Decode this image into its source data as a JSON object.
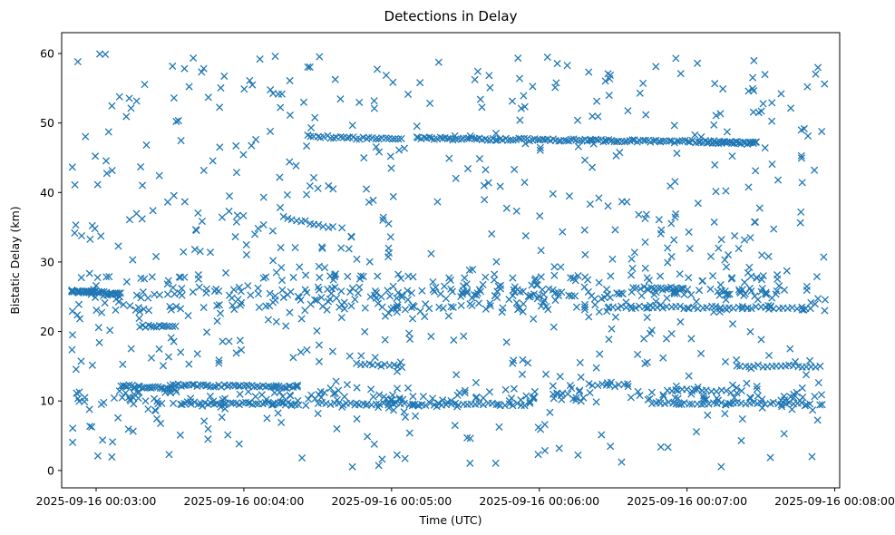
{
  "chart_data": {
    "type": "scatter",
    "title": "Detections in Delay",
    "xlabel": "Time (UTC)",
    "ylabel": "Bistatic Delay (km)",
    "marker": "x",
    "color": "#1f77b4",
    "x_unit": "seconds since 2025-09-16 00:03:00 UTC",
    "xlim": [
      -14,
      302
    ],
    "ylim": [
      -2.5,
      63
    ],
    "x_ticks": [
      0,
      60,
      120,
      180,
      240,
      300
    ],
    "x_tick_labels": [
      "2025-09-16 00:03:00",
      "2025-09-16 00:04:00",
      "2025-09-16 00:05:00",
      "2025-09-16 00:06:00",
      "2025-09-16 00:07:00",
      "2025-09-16 00:08:00"
    ],
    "y_ticks": [
      0,
      10,
      20,
      30,
      40,
      50,
      60
    ],
    "y_tick_labels": [
      "0",
      "10",
      "20",
      "30",
      "40",
      "50",
      "60"
    ],
    "grid": false,
    "time_range": [
      -10,
      297
    ],
    "tracks": [
      {
        "t0": -10,
        "t1": 10,
        "y0": 25.8,
        "y1": 25.4,
        "n": 32
      },
      {
        "t0": 10,
        "t1": 32,
        "y0": 12.2,
        "y1": 11.8,
        "n": 26
      },
      {
        "t0": 18,
        "t1": 32,
        "y0": 20.8,
        "y1": 20.6,
        "n": 14
      },
      {
        "t0": 30,
        "t1": 82,
        "y0": 12.3,
        "y1": 12.0,
        "n": 48
      },
      {
        "t0": 36,
        "t1": 82,
        "y0": 9.7,
        "y1": 9.6,
        "n": 36
      },
      {
        "t0": 86,
        "t1": 124,
        "y0": 48.1,
        "y1": 47.6,
        "n": 30
      },
      {
        "t0": 76,
        "t1": 96,
        "y0": 36.4,
        "y1": 35.0,
        "n": 12
      },
      {
        "t0": 106,
        "t1": 124,
        "y0": 15.3,
        "y1": 15.0,
        "n": 12
      },
      {
        "t0": 90,
        "t1": 176,
        "y0": 9.6,
        "y1": 9.5,
        "n": 52
      },
      {
        "t0": 130,
        "t1": 268,
        "y0": 47.8,
        "y1": 47.2,
        "n": 130
      },
      {
        "t0": 248,
        "t1": 268,
        "y0": 47.2,
        "y1": 47.1,
        "n": 18
      },
      {
        "t0": 200,
        "t1": 216,
        "y0": 12.4,
        "y1": 12.2,
        "n": 10
      },
      {
        "t0": 218,
        "t1": 240,
        "y0": 26.3,
        "y1": 26.1,
        "n": 16
      },
      {
        "t0": 208,
        "t1": 290,
        "y0": 23.5,
        "y1": 23.4,
        "n": 46
      },
      {
        "t0": 226,
        "t1": 290,
        "y0": 9.7,
        "y1": 9.6,
        "n": 40
      },
      {
        "t0": 260,
        "t1": 294,
        "y0": 15.1,
        "y1": 15.0,
        "n": 20
      },
      {
        "t0": 232,
        "t1": 262,
        "y0": 11.6,
        "y1": 11.3,
        "n": 16
      }
    ],
    "bands": [
      {
        "y": 25.5,
        "spread": 1.6,
        "n": 200
      },
      {
        "y": 10.5,
        "spread": 2.2,
        "n": 170
      },
      {
        "y": 23.5,
        "spread": 1.2,
        "n": 90
      },
      {
        "y": 27.8,
        "spread": 0.8,
        "n": 60
      }
    ],
    "scatter_points": {
      "y_range": [
        0.5,
        60
      ],
      "n": 620
    },
    "seed": 20250916
  }
}
